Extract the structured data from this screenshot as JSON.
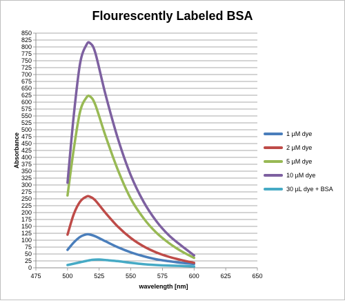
{
  "chart_data": {
    "type": "line",
    "title": "Flourescently Labeled BSA",
    "xlabel": "wavelength [nm]",
    "ylabel": "Absorbance",
    "xlim": [
      475,
      650
    ],
    "ylim": [
      0,
      850
    ],
    "xticks": [
      475,
      500,
      525,
      550,
      575,
      600,
      625,
      650
    ],
    "yticks": [
      0,
      25,
      50,
      75,
      100,
      125,
      150,
      175,
      200,
      225,
      250,
      275,
      300,
      325,
      350,
      375,
      400,
      425,
      450,
      475,
      500,
      525,
      550,
      575,
      600,
      625,
      650,
      675,
      700,
      725,
      750,
      775,
      800,
      825,
      850
    ],
    "grid": "horizontal",
    "legend_position": "right",
    "series": [
      {
        "name": "1 µM dye",
        "color": "#4a7ebb",
        "x": [
          500,
          505,
          510,
          515,
          518,
          522,
          530,
          540,
          550,
          560,
          570,
          580,
          590,
          600
        ],
        "y": [
          65,
          92,
          112,
          121,
          120,
          114,
          96,
          74,
          56,
          42,
          31,
          24,
          18,
          14
        ]
      },
      {
        "name": "2 µM dye",
        "color": "#be4b48",
        "x": [
          500,
          505,
          510,
          515,
          518,
          522,
          530,
          540,
          550,
          560,
          570,
          580,
          590,
          600
        ],
        "y": [
          120,
          195,
          240,
          258,
          257,
          244,
          199,
          148,
          108,
          78,
          56,
          40,
          28,
          18
        ]
      },
      {
        "name": "5 µM dye",
        "color": "#98b954",
        "x": [
          500,
          505,
          510,
          515,
          518,
          522,
          530,
          540,
          550,
          560,
          570,
          580,
          590,
          600
        ],
        "y": [
          262,
          432,
          567,
          617,
          620,
          590,
          478,
          352,
          250,
          180,
          128,
          90,
          60,
          36
        ]
      },
      {
        "name": "10 µM dye",
        "color": "#7d60a0",
        "x": [
          500,
          505,
          510,
          515,
          518,
          522,
          530,
          540,
          550,
          560,
          570,
          580,
          590,
          600
        ],
        "y": [
          308,
          555,
          742,
          808,
          813,
          778,
          628,
          465,
          335,
          240,
          170,
          118,
          80,
          45
        ]
      },
      {
        "name": "30 µL dye + BSA",
        "color": "#46aac5",
        "x": [
          500,
          505,
          510,
          515,
          520,
          525,
          530,
          540,
          550,
          560,
          570,
          580,
          590,
          600
        ],
        "y": [
          10,
          15,
          20,
          25,
          29,
          30,
          28,
          24,
          18,
          13,
          10,
          8,
          7,
          5
        ]
      }
    ]
  }
}
